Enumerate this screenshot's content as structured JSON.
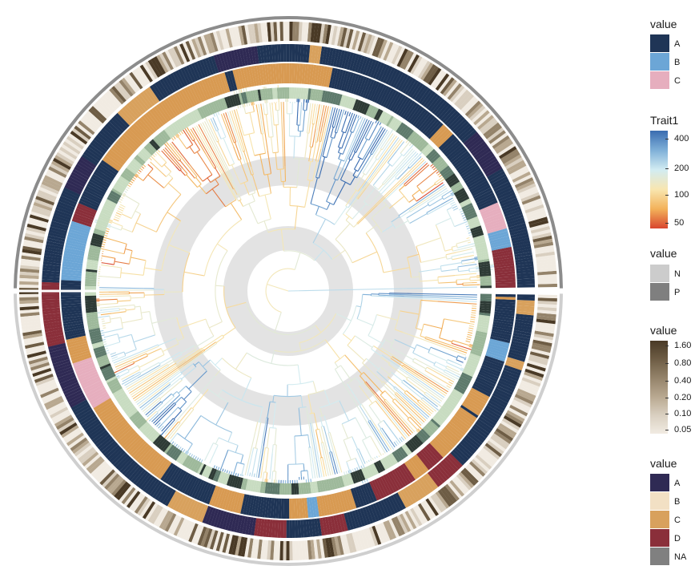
{
  "chart_data": {
    "type": "circular-phylogenetic-tree",
    "title": "",
    "layout": "fan",
    "open_angle_description": "tree occupies full circle, starting at 3 o'clock (right), tips arranged counter-clockwise",
    "background_rings": 2,
    "tree_color_variable": "Trait1",
    "rings_inner_to_outer": [
      {
        "name": "inner-heatmap",
        "legend": "value (N/P)",
        "palette": [
          "#CCCCCC",
          "#7F7F7F"
        ]
      },
      {
        "name": "group-ring-1",
        "legend": "value (A/B/C)",
        "palette": [
          "#1F3556",
          "#6CA6D6",
          "#E6AEBE"
        ]
      },
      {
        "name": "group-ring-2",
        "legend": "value (A/B/C/D/NA)",
        "palette": [
          "#2F2A54",
          "#F2E0C4",
          "#D8A15D",
          "#8A2F3A",
          "#808080"
        ]
      },
      {
        "name": "continuous-ring",
        "legend": "value (0.05–1.60)",
        "palette": [
          "#F1EBE2",
          "#5A4A36"
        ]
      }
    ],
    "legends": [
      {
        "title": "value",
        "kind": "discrete",
        "keys": [
          {
            "label": "A",
            "color": "#1F3556"
          },
          {
            "label": "B",
            "color": "#6CA6D6"
          },
          {
            "label": "C",
            "color": "#E6AEBE"
          }
        ]
      },
      {
        "title": "Trait1",
        "kind": "continuous",
        "ticks": [
          {
            "label": "400",
            "value": 400
          },
          {
            "label": "200",
            "value": 200
          },
          {
            "label": "100",
            "value": 100
          },
          {
            "label": "50",
            "value": 50
          }
        ],
        "colors": [
          "#D8452E",
          "#F3B25A",
          "#F8E6B0",
          "#D2ECF2",
          "#7FB0D8",
          "#3A6CB0"
        ]
      },
      {
        "title": "value",
        "kind": "discrete",
        "keys": [
          {
            "label": "N",
            "color": "#CCCCCC"
          },
          {
            "label": "P",
            "color": "#7F7F7F"
          }
        ]
      },
      {
        "title": "value",
        "kind": "continuous",
        "ticks": [
          {
            "label": "1.60",
            "value": 1.6
          },
          {
            "label": "0.80",
            "value": 0.8
          },
          {
            "label": "0.40",
            "value": 0.4
          },
          {
            "label": "0.20",
            "value": 0.2
          },
          {
            "label": "0.10",
            "value": 0.1
          },
          {
            "label": "0.05",
            "value": 0.05
          }
        ],
        "colors": [
          "#F1EBE2",
          "#D9CFC0",
          "#B8A890",
          "#94836A",
          "#6E5D45",
          "#4A3A26"
        ]
      },
      {
        "title": "value",
        "kind": "discrete",
        "keys": [
          {
            "label": "A",
            "color": "#2F2A54"
          },
          {
            "label": "B",
            "color": "#F2E0C4"
          },
          {
            "label": "C",
            "color": "#D8A15D"
          },
          {
            "label": "D",
            "color": "#8A2F3A"
          },
          {
            "label": "NA",
            "color": "#808080"
          }
        ]
      }
    ]
  }
}
